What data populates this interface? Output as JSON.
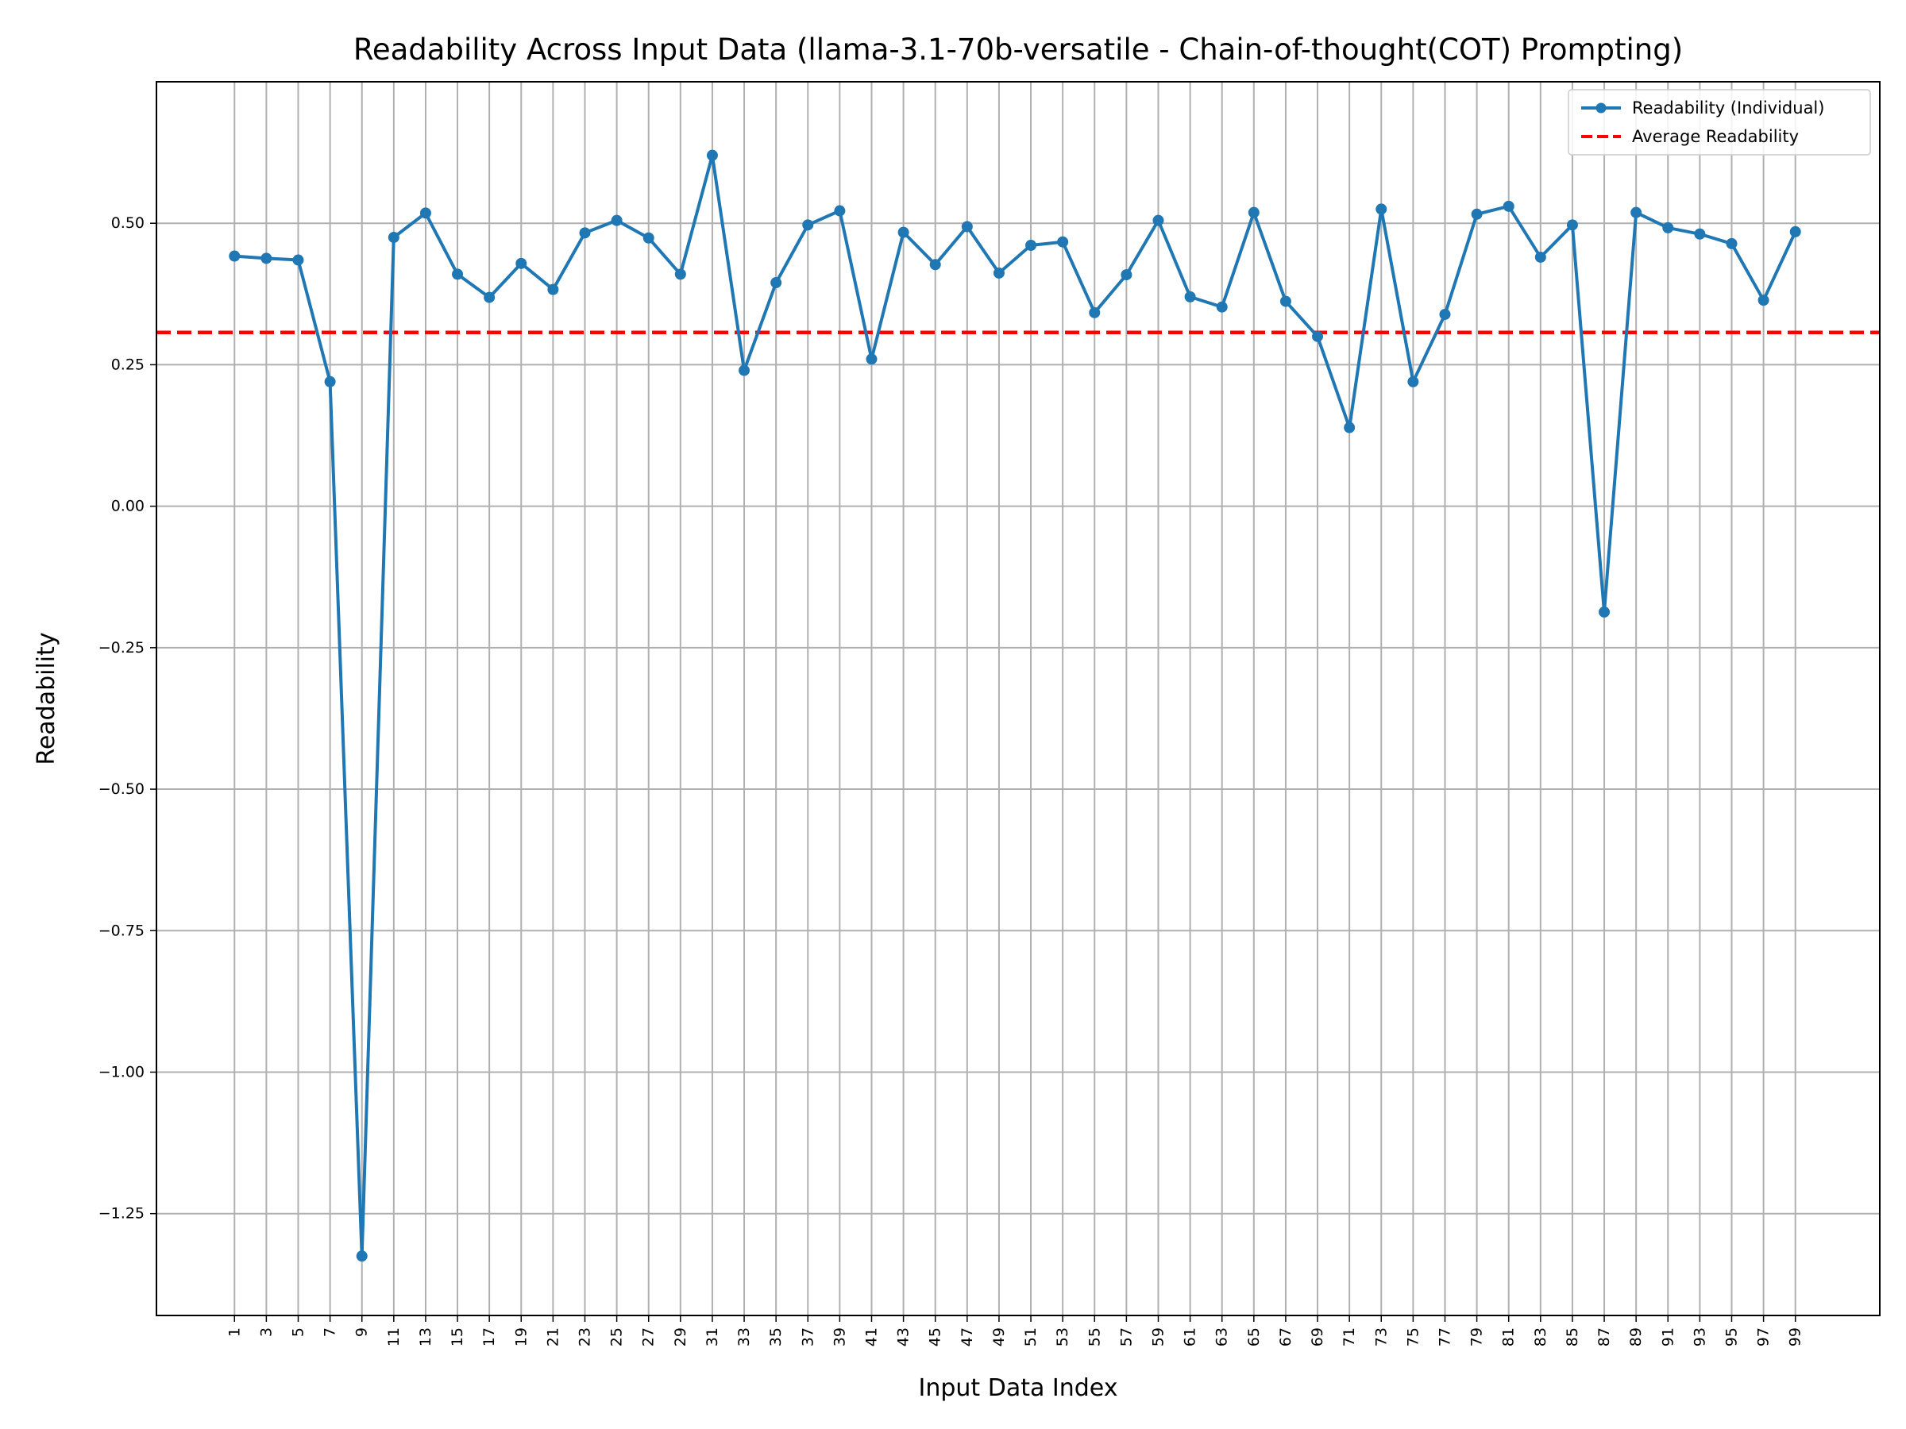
{
  "chart_data": {
    "type": "line",
    "title": "Readability Across Input Data (llama-3.1-70b-versatile - Chain-of-thought(COT) Prompting)",
    "xlabel": "Input Data Index",
    "ylabel": "Readability",
    "ylim": [
      -1.43,
      0.75
    ],
    "xlim": [
      -3.9,
      104.3
    ],
    "y_ticks": [
      -1.25,
      -1.0,
      -0.75,
      -0.5,
      -0.25,
      0.0,
      0.25,
      0.5
    ],
    "y_tick_labels": [
      "−1.25",
      "−1.00",
      "−0.75",
      "−0.50",
      "−0.25",
      "0.00",
      "0.25",
      "0.50"
    ],
    "x_ticks": [
      1,
      3,
      5,
      7,
      9,
      11,
      13,
      15,
      17,
      19,
      21,
      23,
      25,
      27,
      29,
      31,
      33,
      35,
      37,
      39,
      41,
      43,
      45,
      47,
      49,
      51,
      53,
      55,
      57,
      59,
      61,
      63,
      65,
      67,
      69,
      71,
      73,
      75,
      77,
      79,
      81,
      83,
      85,
      87,
      89,
      91,
      93,
      95,
      97,
      99
    ],
    "grid": true,
    "legend_position": "top-right",
    "series": [
      {
        "name": "Readability (Individual)",
        "color": "#1f77b4",
        "x": [
          1,
          3,
          5,
          7,
          9,
          11,
          13,
          15,
          17,
          19,
          21,
          23,
          25,
          27,
          29,
          31,
          33,
          35,
          37,
          39,
          41,
          43,
          45,
          47,
          49,
          51,
          53,
          55,
          57,
          59,
          61,
          63,
          65,
          67,
          69,
          71,
          73,
          75,
          77,
          79,
          81,
          83,
          85,
          87,
          89,
          91,
          93,
          95,
          97,
          99
        ],
        "values": [
          0.442,
          0.438,
          0.435,
          0.22,
          -1.325,
          0.475,
          0.518,
          0.41,
          0.369,
          0.429,
          0.383,
          0.483,
          0.505,
          0.474,
          0.41,
          0.62,
          0.24,
          0.395,
          0.497,
          0.522,
          0.26,
          0.484,
          0.427,
          0.494,
          0.412,
          0.461,
          0.467,
          0.342,
          0.409,
          0.505,
          0.37,
          0.352,
          0.519,
          0.362,
          0.3,
          0.139,
          0.525,
          0.22,
          0.339,
          0.516,
          0.53,
          0.44,
          0.497,
          -0.187,
          0.519,
          0.492,
          0.481,
          0.464,
          0.364,
          0.485
        ]
      },
      {
        "name": "Average Readability",
        "color": "#ff0000",
        "style": "dashed",
        "value": 0.307
      }
    ]
  }
}
